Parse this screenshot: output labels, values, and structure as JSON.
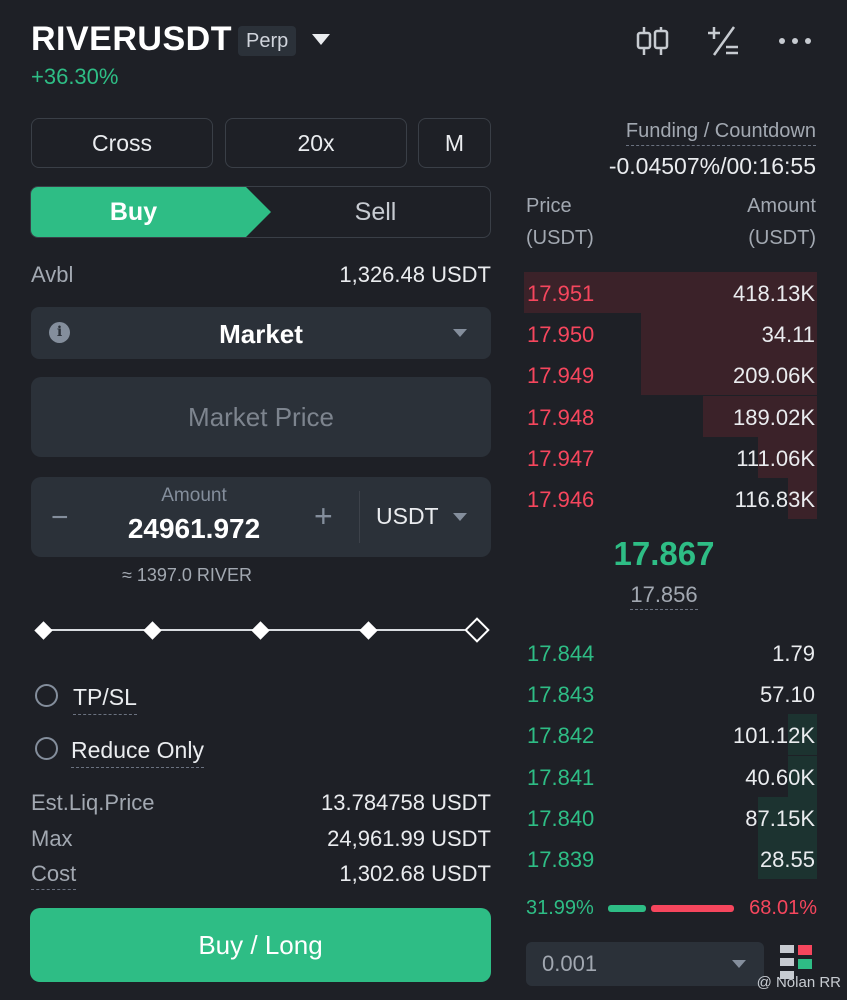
{
  "header": {
    "symbol": "RIVERUSDT",
    "badge": "Perp",
    "change": "+36.30%",
    "icons": [
      "candlestick-chart-icon",
      "calculator-icon",
      "more-icon"
    ]
  },
  "controls": {
    "margin_mode": "Cross",
    "leverage": "20x",
    "asset_mode": "M"
  },
  "side_tabs": {
    "buy": "Buy",
    "sell": "Sell",
    "active": "buy"
  },
  "available": {
    "label": "Avbl",
    "value": "1,326.48 USDT"
  },
  "order_type": {
    "label": "Market"
  },
  "price_field": {
    "placeholder": "Market Price"
  },
  "amount": {
    "label": "Amount",
    "value": "24961.972",
    "unit": "USDT",
    "minus": "−",
    "plus": "+",
    "approx": "≈ 1397.0 RIVER"
  },
  "slider": {
    "level_fraction": 1.0
  },
  "options": {
    "tpsl": "TP/SL",
    "reduce_only": "Reduce Only"
  },
  "summary": {
    "liq_label": "Est.Liq.Price",
    "liq_value": "13.784758 USDT",
    "max_label": "Max",
    "max_value": "24,961.99 USDT",
    "cost_label": "Cost",
    "cost_value": "1,302.68 USDT"
  },
  "submit": {
    "label": "Buy / Long"
  },
  "funding": {
    "label": "Funding / Countdown",
    "value": "-0.04507%/00:16:55"
  },
  "orderbook": {
    "price_header": "Price",
    "price_unit": "(USDT)",
    "amount_header": "Amount",
    "amount_unit": "(USDT)",
    "asks": [
      {
        "price": "17.951",
        "amount": "418.13K",
        "depth": 1.0
      },
      {
        "price": "17.950",
        "amount": "34.11",
        "depth": 0.6
      },
      {
        "price": "17.949",
        "amount": "209.06K",
        "depth": 0.6
      },
      {
        "price": "17.948",
        "amount": "189.02K",
        "depth": 0.39
      },
      {
        "price": "17.947",
        "amount": "111.06K",
        "depth": 0.2
      },
      {
        "price": "17.946",
        "amount": "116.83K",
        "depth": 0.1
      }
    ],
    "last_price": "17.867",
    "mark_price": "17.856",
    "bids": [
      {
        "price": "17.844",
        "amount": "1.79",
        "depth": 0.0
      },
      {
        "price": "17.843",
        "amount": "57.10",
        "depth": 0.0
      },
      {
        "price": "17.842",
        "amount": "101.12K",
        "depth": 0.1
      },
      {
        "price": "17.841",
        "amount": "40.60K",
        "depth": 0.1
      },
      {
        "price": "17.840",
        "amount": "87.15K",
        "depth": 0.2
      },
      {
        "price": "17.839",
        "amount": "28.55",
        "depth": 0.2
      }
    ],
    "buy_ratio": "31.99%",
    "sell_ratio": "68.01%",
    "precision": "0.001"
  },
  "watermark": "@ Nolan RR",
  "colors": {
    "buy": "#2ebd85",
    "sell": "#f6465d",
    "background": "#1e2026",
    "panel": "#2b3139"
  }
}
